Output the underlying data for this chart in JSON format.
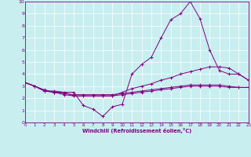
{
  "bg_color": "#c8eef0",
  "grid_color": "#ffffff",
  "line_color": "#800080",
  "marker": "+",
  "xlabel": "Windchill (Refroidissement éolien,°C)",
  "xlim": [
    0,
    23
  ],
  "ylim": [
    0,
    10
  ],
  "xticks": [
    0,
    1,
    2,
    3,
    4,
    5,
    6,
    7,
    8,
    9,
    10,
    11,
    12,
    13,
    14,
    15,
    16,
    17,
    18,
    19,
    20,
    21,
    22,
    23
  ],
  "yticks": [
    0,
    1,
    2,
    3,
    4,
    5,
    6,
    7,
    8,
    9,
    10
  ],
  "series": [
    [
      3.3,
      3.0,
      2.6,
      2.6,
      2.5,
      2.5,
      1.4,
      1.1,
      0.5,
      1.3,
      1.5,
      4.0,
      4.8,
      5.4,
      7.0,
      8.5,
      9.0,
      10.0,
      8.6,
      6.0,
      4.3,
      4.0,
      4.0,
      3.5
    ],
    [
      3.3,
      3.0,
      2.6,
      2.5,
      2.5,
      2.2,
      2.2,
      2.2,
      2.2,
      2.2,
      2.5,
      2.8,
      3.0,
      3.2,
      3.5,
      3.7,
      4.0,
      4.2,
      4.4,
      4.6,
      4.6,
      4.5,
      4.0,
      3.5
    ],
    [
      3.3,
      3.0,
      2.7,
      2.5,
      2.4,
      2.3,
      2.3,
      2.3,
      2.3,
      2.3,
      2.4,
      2.5,
      2.6,
      2.7,
      2.8,
      2.9,
      3.0,
      3.1,
      3.1,
      3.1,
      3.1,
      3.0,
      2.9,
      2.9
    ],
    [
      3.3,
      3.0,
      2.6,
      2.5,
      2.3,
      2.2,
      2.2,
      2.2,
      2.2,
      2.2,
      2.3,
      2.4,
      2.5,
      2.6,
      2.7,
      2.8,
      2.9,
      3.0,
      3.0,
      3.0,
      3.0,
      2.9,
      2.9,
      2.9
    ]
  ]
}
